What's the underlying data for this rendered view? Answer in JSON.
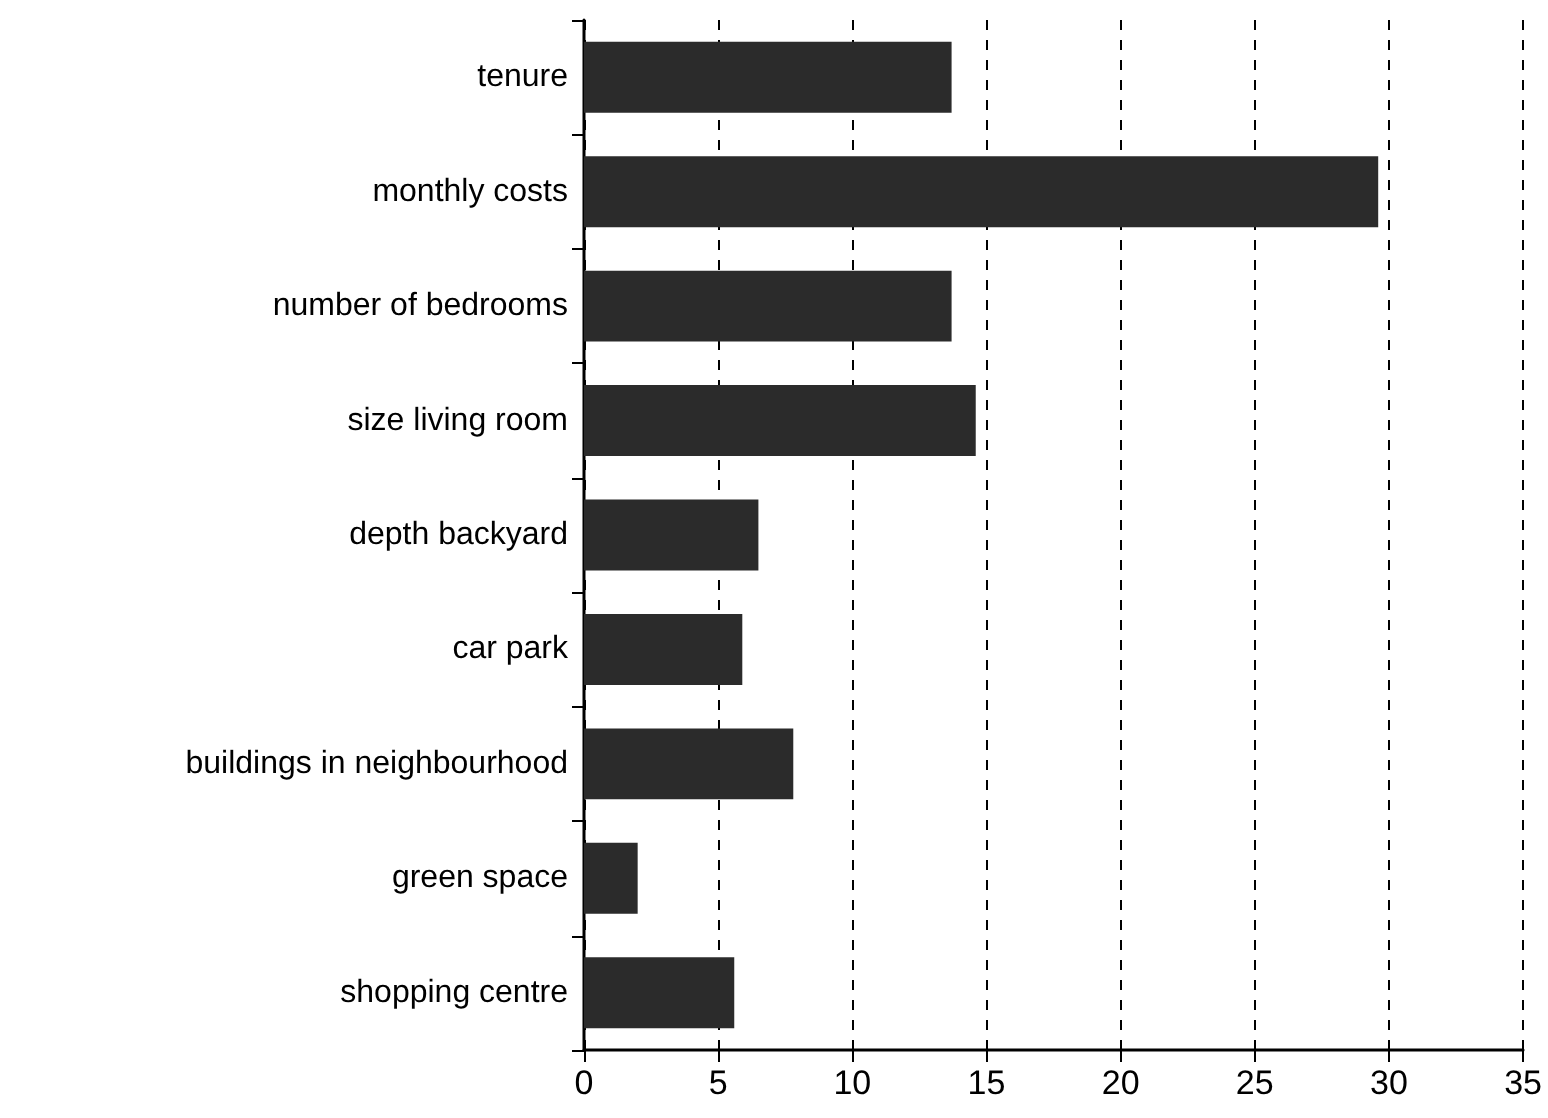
{
  "chart_data": {
    "type": "bar",
    "orientation": "horizontal",
    "categories": [
      "tenure",
      "monthly costs",
      "number of bedrooms",
      "size living room",
      "depth backyard",
      "car park",
      "buildings in neighbourhood",
      "green space",
      "shopping centre"
    ],
    "values": [
      13.7,
      29.6,
      13.7,
      14.6,
      6.5,
      5.9,
      7.8,
      2.0,
      5.6
    ],
    "color": "#2b2b2b",
    "xlim": [
      0,
      35
    ],
    "xticks": [
      0,
      5,
      10,
      15,
      20,
      25,
      30,
      35
    ],
    "grid": "x"
  }
}
